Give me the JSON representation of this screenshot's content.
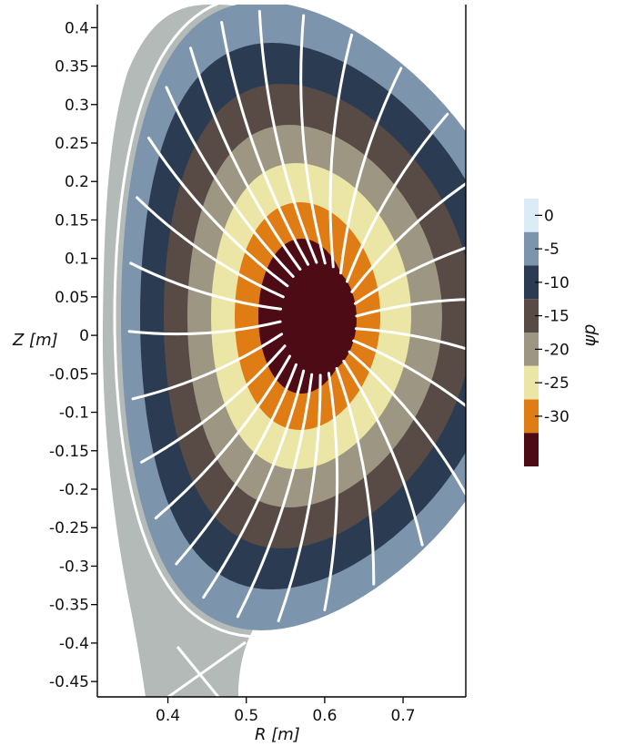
{
  "chart_data": {
    "type": "heatmap",
    "xlabel": "R [m]",
    "ylabel": "Z [m]",
    "xlim": [
      0.31,
      0.78
    ],
    "ylim": [
      -0.47,
      0.43
    ],
    "x_ticks": [
      "0.4",
      "0.5",
      "0.6",
      "0.7"
    ],
    "x_tick_values": [
      0.4,
      0.5,
      0.6,
      0.7
    ],
    "y_ticks": [
      "0.4",
      "0.35",
      "0.3",
      "0.25",
      "0.2",
      "0.15",
      "0.1",
      "0.05",
      "0",
      "-0.05",
      "-0.1",
      "-0.15",
      "-0.2",
      "-0.25",
      "-0.3",
      "-0.35",
      "-0.4",
      "-0.45"
    ],
    "y_tick_values": [
      0.4,
      0.35,
      0.3,
      0.25,
      0.2,
      0.15,
      0.1,
      0.05,
      0,
      -0.05,
      -0.1,
      -0.15,
      -0.2,
      -0.25,
      -0.3,
      -0.35,
      -0.4,
      -0.45
    ],
    "colorbar": {
      "title": "ψp",
      "levels": [
        0,
        -5,
        -10,
        -15,
        -20,
        -25,
        -30
      ],
      "tick_labels": [
        "0",
        "-5",
        "-10",
        "-15",
        "-20",
        "-25",
        "-30"
      ],
      "bands": [
        {
          "range": [
            -2.5,
            2.5
          ],
          "color": "#dcecf7"
        },
        {
          "range": [
            -7.5,
            -2.5
          ],
          "color": "#7d94ad"
        },
        {
          "range": [
            -12.5,
            -7.5
          ],
          "color": "#2b3c52"
        },
        {
          "range": [
            -17.5,
            -12.5
          ],
          "color": "#584a45"
        },
        {
          "range": [
            -22.5,
            -17.5
          ],
          "color": "#9c9682"
        },
        {
          "range": [
            -27.5,
            -22.5
          ],
          "color": "#ece6a6"
        },
        {
          "range": [
            -32.5,
            -27.5
          ],
          "color": "#e07c14"
        },
        {
          "range": [
            -37.5,
            -32.5
          ],
          "color": "#4d0b15"
        }
      ]
    },
    "outer_region_color": "#b3bab8",
    "field_line_color": "#ffffff",
    "magnetic_axis": {
      "R": 0.585,
      "Z": 0.0
    },
    "field_line_count": 28
  }
}
